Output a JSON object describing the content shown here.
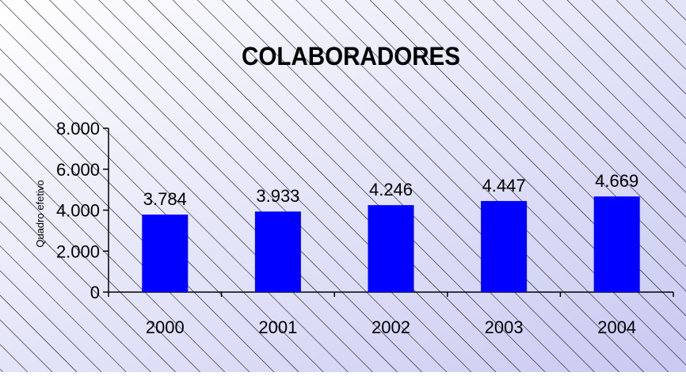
{
  "chart_data": {
    "type": "bar",
    "title": "COLABORADORES",
    "ylabel": "Quadro efetivo",
    "xlabel": "",
    "categories": [
      "2000",
      "2001",
      "2002",
      "2003",
      "2004"
    ],
    "values": [
      3784,
      3933,
      4246,
      4447,
      4669
    ],
    "value_labels": [
      "3.784",
      "3.933",
      "4.246",
      "4.447",
      "4.669"
    ],
    "ylim": [
      0,
      8000
    ],
    "yticks": [
      0,
      2000,
      4000,
      6000,
      8000
    ],
    "ytick_labels": [
      "0",
      "2.000",
      "4.000",
      "6.000",
      "8.000"
    ],
    "grid": false,
    "legend": "none",
    "colors": {
      "bar": "#0000ff",
      "background_start": "#ffffff",
      "background_end": "#c9c9f2",
      "hatch": "#000000",
      "text": "#000000"
    }
  }
}
